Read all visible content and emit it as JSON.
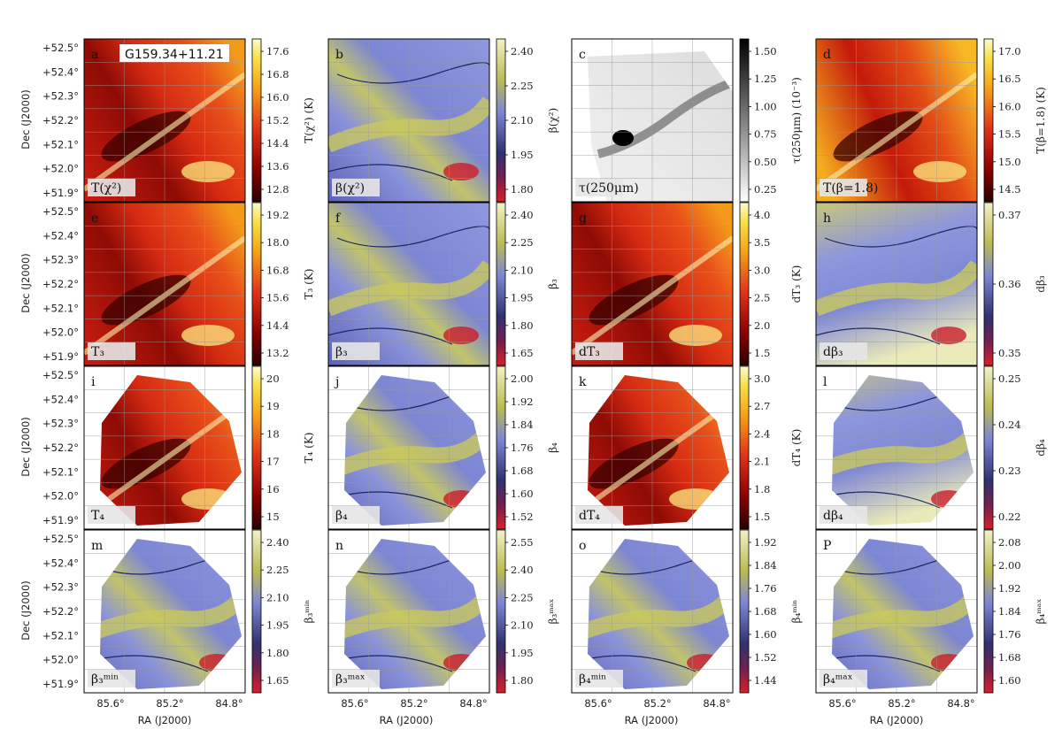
{
  "figure": {
    "source_title": "G159.34+11.21",
    "dec_ticks": [
      "+52.5°",
      "+52.4°",
      "+52.3°",
      "+52.2°",
      "+52.1°",
      "+52.0°",
      "+51.9°"
    ],
    "ra_ticks": [
      "85.6°",
      "85.2°",
      "84.8°"
    ],
    "ylabel": "Dec (J2000)",
    "xlabel": "RA (J2000)"
  },
  "rows": [
    [
      {
        "letter": "a",
        "label": "T(χ²)",
        "cmap": "heat",
        "cb_ticks": [
          "17.6",
          "16.8",
          "16.0",
          "15.2",
          "14.4",
          "13.6",
          "12.8"
        ],
        "cb_label": "T(χ²) (K)",
        "title": true
      },
      {
        "letter": "b",
        "label": "β(χ²)",
        "cmap": "beta",
        "cb_ticks": [
          "2.40",
          "2.25",
          "2.10",
          "1.95",
          "1.80"
        ],
        "cb_label": "β(χ²)"
      },
      {
        "letter": "c",
        "label": "τ(250μm)",
        "cmap": "grey",
        "cb_ticks": [
          "1.50",
          "1.25",
          "1.00",
          "0.75",
          "0.50",
          "0.25"
        ],
        "cb_label": "τ(250μm) (10⁻³)"
      },
      {
        "letter": "d",
        "label": "T(β=1.8)",
        "cmap": "heat",
        "cb_ticks": [
          "17.0",
          "16.5",
          "16.0",
          "15.5",
          "15.0",
          "14.5"
        ],
        "cb_label": "T(β=1.8) (K)"
      }
    ],
    [
      {
        "letter": "e",
        "label": "T₃",
        "cmap": "heat",
        "cb_ticks": [
          "19.2",
          "18.0",
          "16.8",
          "15.6",
          "14.4",
          "13.2"
        ],
        "cb_label": "T₃ (K)"
      },
      {
        "letter": "f",
        "label": "β₃",
        "cmap": "beta",
        "cb_ticks": [
          "2.40",
          "2.25",
          "2.10",
          "1.95",
          "1.80",
          "1.65"
        ],
        "cb_label": "β₃"
      },
      {
        "letter": "g",
        "label": "dT₃",
        "cmap": "heat",
        "cb_ticks": [
          "4.0",
          "3.5",
          "3.0",
          "2.5",
          "2.0",
          "1.5"
        ],
        "cb_label": "dT₃ (K)"
      },
      {
        "letter": "h",
        "label": "dβ₃",
        "cmap": "beta",
        "cb_ticks": [
          "0.37",
          "0.36",
          "0.35"
        ],
        "cb_label": "dβ₃"
      }
    ],
    [
      {
        "letter": "i",
        "label": "T₄",
        "cmap": "heat",
        "cb_ticks": [
          "20",
          "19",
          "18",
          "17",
          "16",
          "15"
        ],
        "cb_label": "T₄ (K)"
      },
      {
        "letter": "j",
        "label": "β₄",
        "cmap": "beta",
        "cb_ticks": [
          "2.00",
          "1.92",
          "1.84",
          "1.76",
          "1.68",
          "1.60",
          "1.52"
        ],
        "cb_label": "β₄"
      },
      {
        "letter": "k",
        "label": "dT₄",
        "cmap": "heat",
        "cb_ticks": [
          "3.0",
          "2.7",
          "2.4",
          "2.1",
          "1.8",
          "1.5"
        ],
        "cb_label": "dT₄ (K)"
      },
      {
        "letter": "l",
        "label": "dβ₄",
        "cmap": "beta",
        "cb_ticks": [
          "0.25",
          "0.24",
          "0.23",
          "0.22"
        ],
        "cb_label": "dβ₄"
      }
    ],
    [
      {
        "letter": "m",
        "label": "β₃ᵐⁱⁿ",
        "cmap": "beta",
        "cb_ticks": [
          "2.40",
          "2.25",
          "2.10",
          "1.95",
          "1.80",
          "1.65"
        ],
        "cb_label": "β₃ᵐⁱⁿ"
      },
      {
        "letter": "n",
        "label": "β₃ᵐᵃˣ",
        "cmap": "beta",
        "cb_ticks": [
          "2.55",
          "2.40",
          "2.25",
          "2.10",
          "1.95",
          "1.80"
        ],
        "cb_label": "β₃ᵐᵃˣ"
      },
      {
        "letter": "o",
        "label": "β₄ᵐⁱⁿ",
        "cmap": "beta",
        "cb_ticks": [
          "1.92",
          "1.84",
          "1.76",
          "1.68",
          "1.60",
          "1.52",
          "1.44"
        ],
        "cb_label": "β₄ᵐⁱⁿ"
      },
      {
        "letter": "P",
        "label": "β₄ᵐᵃˣ",
        "cmap": "beta",
        "cb_ticks": [
          "2.08",
          "2.00",
          "1.92",
          "1.84",
          "1.76",
          "1.68",
          "1.60"
        ],
        "cb_label": "β₄ᵐᵃˣ"
      }
    ]
  ],
  "colors": {
    "heat_high": "#fdfbd0",
    "heat_mid": "#f5a317",
    "heat_low": "#2a0000",
    "beta_high": "#f2f2c8",
    "beta_mid": "#7d86d4",
    "beta_low": "#d91e2a",
    "grey_high": "#000000",
    "grey_low": "#ffffff"
  }
}
